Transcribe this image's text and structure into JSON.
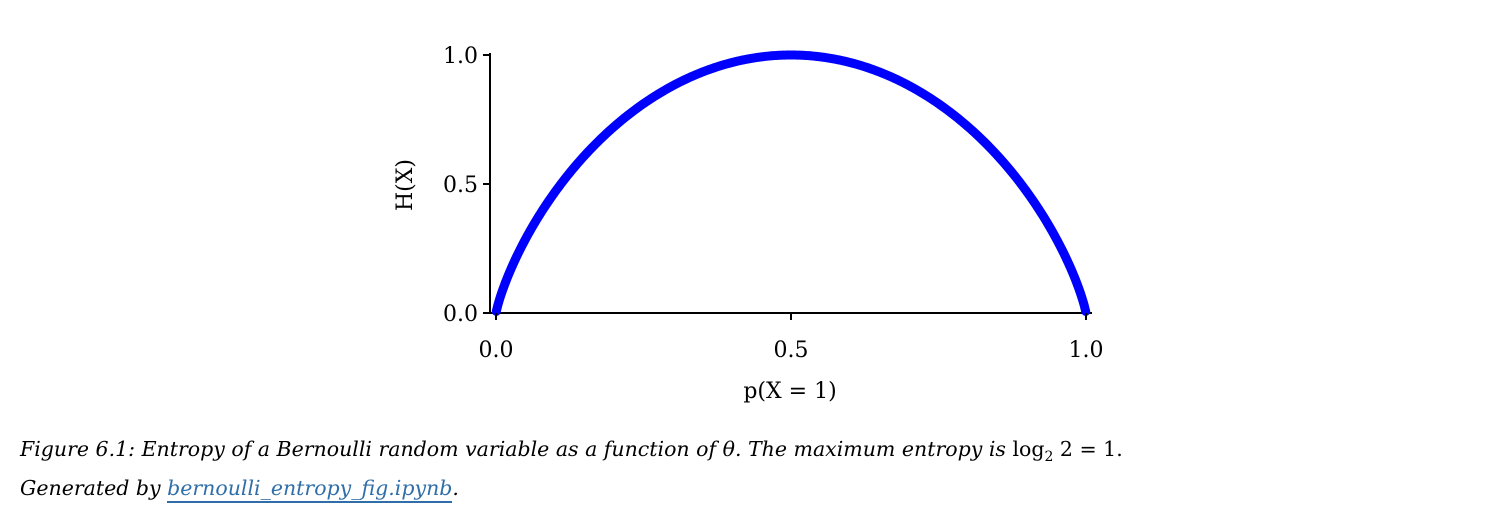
{
  "chart_data": {
    "type": "line",
    "title": "",
    "xlabel": "p(X = 1)",
    "ylabel": "H(X)",
    "xlim": [
      0.0,
      1.0
    ],
    "ylim": [
      0.0,
      1.0
    ],
    "xticks": [
      "0.0",
      "0.5",
      "1.0"
    ],
    "yticks": [
      "0.0",
      "0.5",
      "1.0"
    ],
    "grid": false,
    "legend": "none",
    "series": [
      {
        "color": "#0000ff",
        "x": [
          0.001,
          0.01,
          0.02,
          0.05,
          0.1,
          0.15,
          0.2,
          0.25,
          0.3,
          0.35,
          0.4,
          0.45,
          0.5,
          0.55,
          0.6,
          0.65,
          0.7,
          0.75,
          0.8,
          0.85,
          0.9,
          0.95,
          0.98,
          0.99,
          0.999
        ],
        "y": [
          0.011,
          0.081,
          0.141,
          0.286,
          0.469,
          0.61,
          0.722,
          0.811,
          0.881,
          0.934,
          0.971,
          0.993,
          1.0,
          0.993,
          0.971,
          0.934,
          0.881,
          0.811,
          0.722,
          0.61,
          0.469,
          0.286,
          0.141,
          0.081,
          0.011
        ]
      }
    ]
  },
  "caption": {
    "text_before_theta": "Figure 6.1: Entropy of a Bernoulli random variable as a function of",
    "theta": "θ",
    "text_after_theta": ". The maximum entropy is",
    "log": "log",
    "log_base": "2",
    "equation_tail": "2 = 1.",
    "line2_prefix": "Generated by",
    "link_text": "bernoulli_entropy_fig.ipynb",
    "line2_suffix": "."
  }
}
